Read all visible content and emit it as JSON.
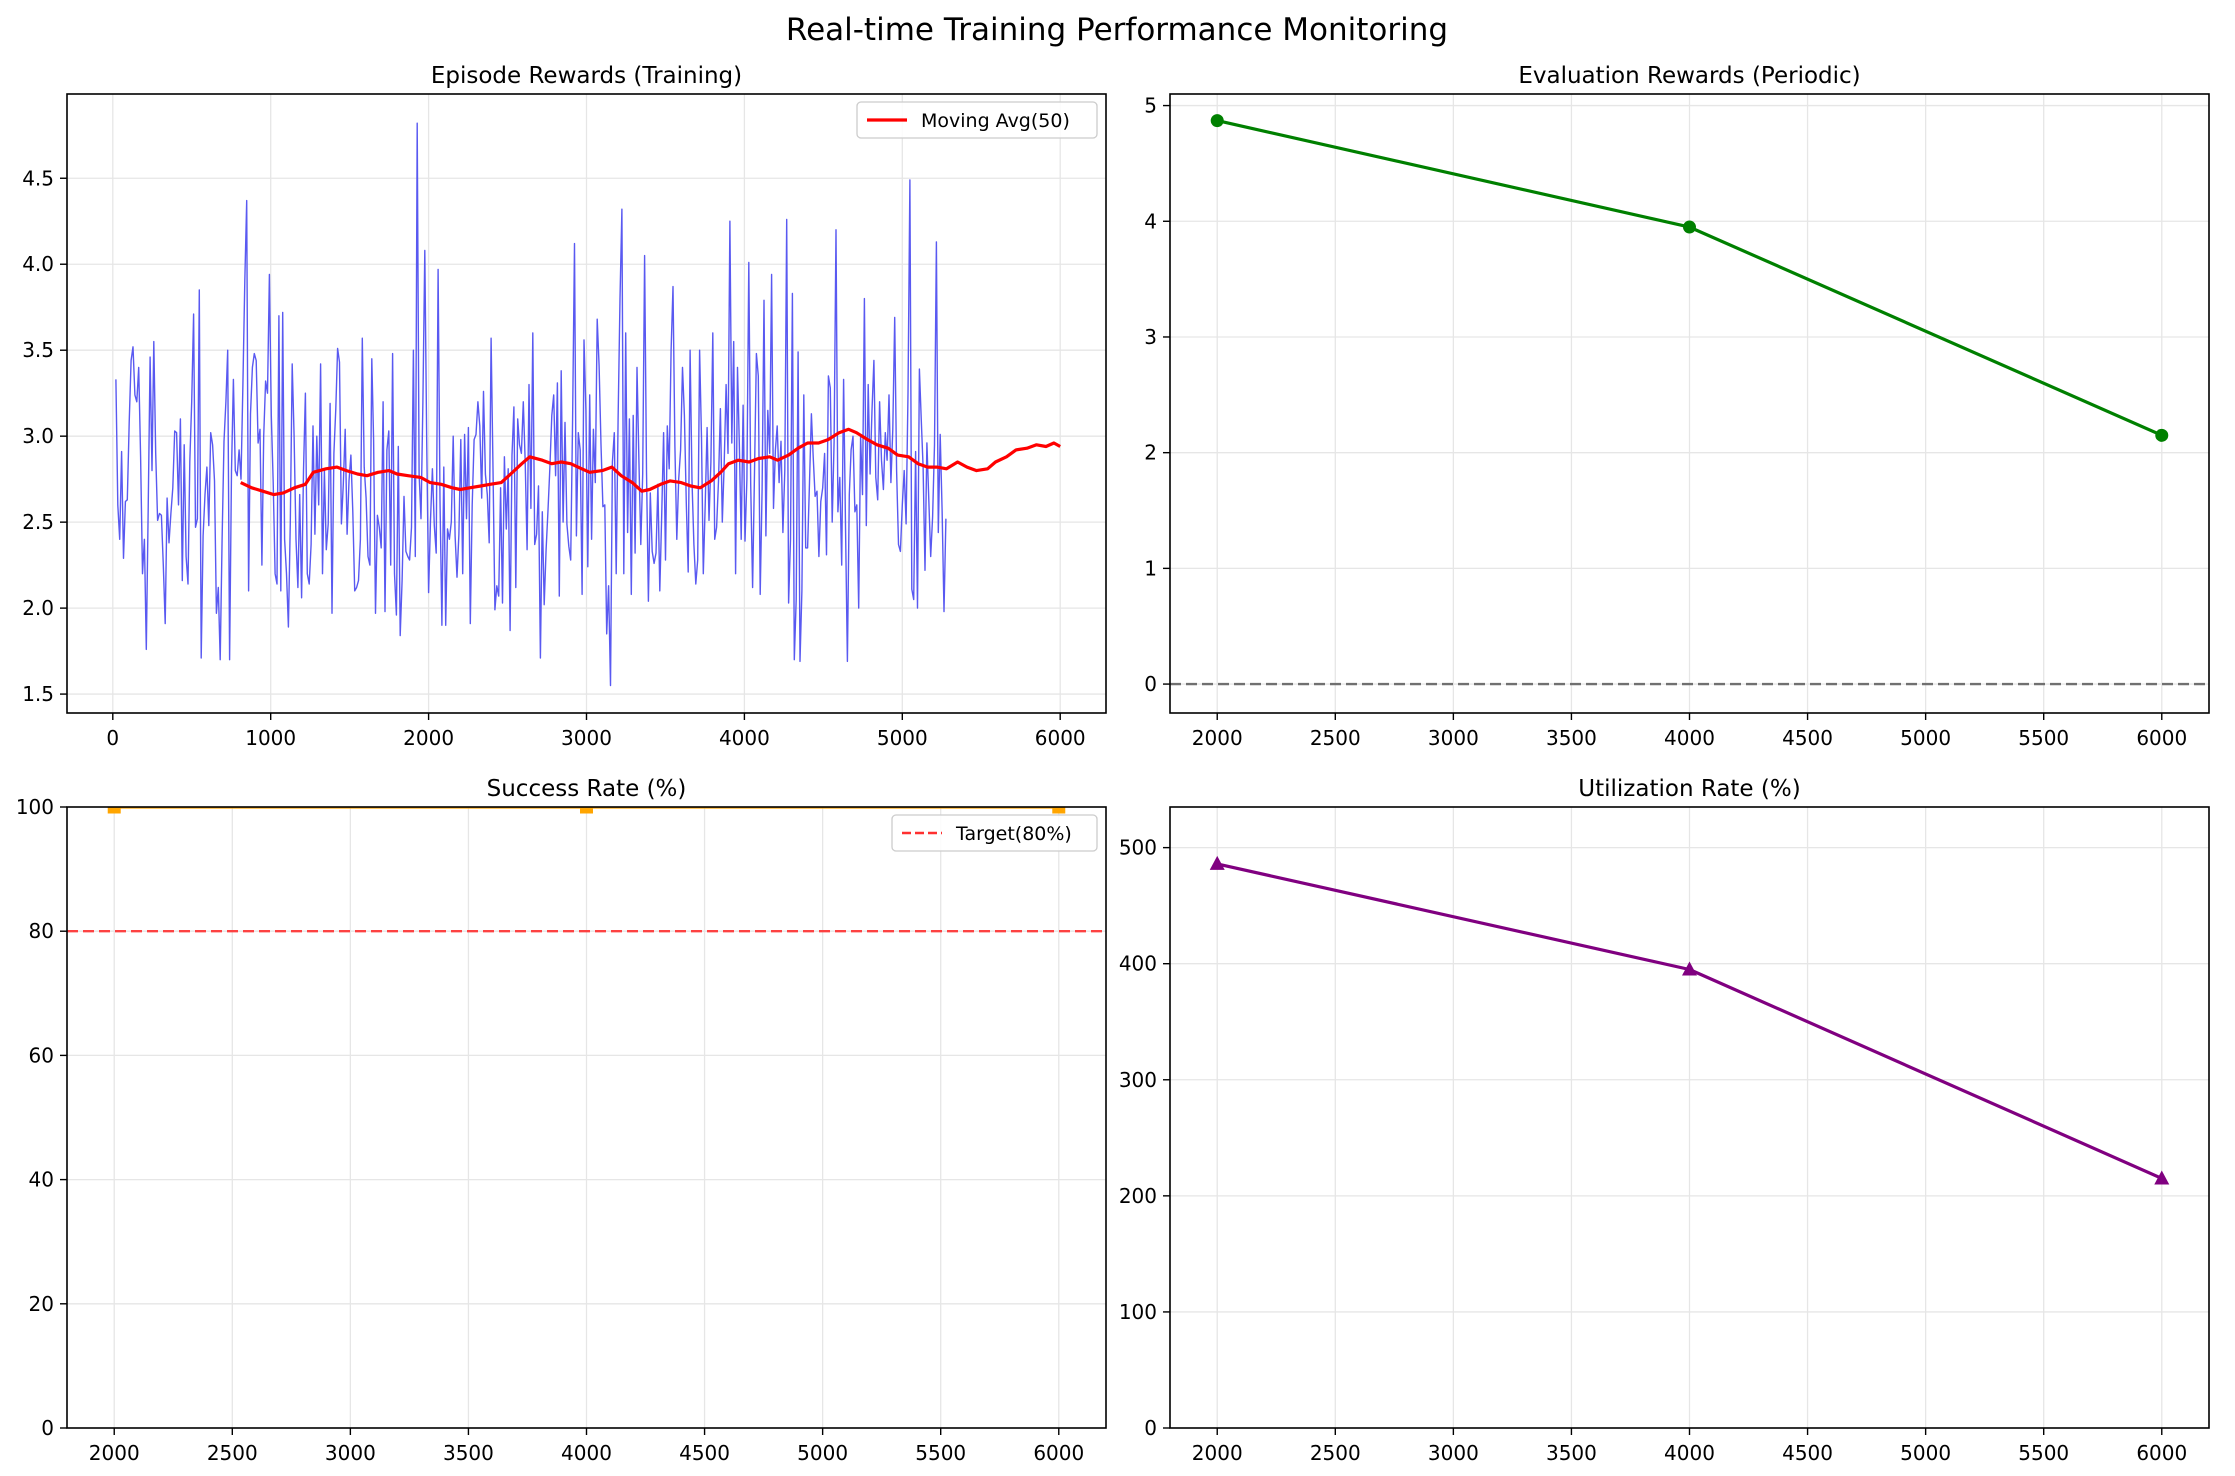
{
  "figure": {
    "title": "Real-time Training Performance Monitoring"
  },
  "colors": {
    "raw_rewards": "#5050f0",
    "moving_avg": "#ff0000",
    "eval": "#008000",
    "success": "#ffa500",
    "target": "#ff3030",
    "utilization": "#800080",
    "zero_line": "#707070",
    "grid": "#e6e6e6"
  },
  "chart_data": [
    {
      "type": "line",
      "title": "Episode Rewards (Training)",
      "xlabel": "",
      "ylabel": "",
      "xlim": [
        -290,
        6290
      ],
      "ylim": [
        1.39,
        4.99
      ],
      "xticks": [
        0,
        1000,
        2000,
        3000,
        4000,
        5000,
        6000
      ],
      "yticks": [
        1.5,
        2.0,
        2.5,
        3.0,
        3.5,
        4.0,
        4.5
      ],
      "ytick_labels": [
        "1.5",
        "2.0",
        "2.5",
        "3.0",
        "3.5",
        "4.0",
        "4.5"
      ],
      "grid": true,
      "legend": {
        "position": "upper-right",
        "entries": [
          "Moving Avg(50)"
        ]
      },
      "series": [
        {
          "key": "raw",
          "x_start": 20,
          "x_step": 12,
          "values": [
            3.33,
            2.6,
            2.4,
            2.91,
            2.29,
            2.62,
            2.63,
            3.08,
            3.44,
            3.52,
            3.24,
            3.2,
            3.4,
            2.88,
            2.2,
            2.4,
            1.76,
            2.58,
            3.46,
            2.8,
            3.55,
            2.9,
            2.51,
            2.55,
            2.54,
            2.25,
            1.91,
            2.64,
            2.38,
            2.55,
            2.7,
            3.03,
            3.02,
            2.6,
            3.1,
            2.16,
            2.95,
            2.3,
            2.14,
            2.85,
            3.2,
            3.71,
            2.47,
            2.52,
            3.85,
            1.71,
            2.42,
            2.66,
            2.82,
            2.48,
            3.02,
            2.95,
            2.74,
            1.97,
            2.12,
            1.7,
            2.4,
            2.97,
            3.2,
            3.5,
            1.7,
            2.8,
            3.33,
            2.8,
            2.77,
            2.92,
            2.75,
            3.3,
            3.9,
            4.37,
            2.1,
            3.13,
            3.4,
            3.48,
            3.44,
            2.96,
            3.04,
            2.25,
            3.0,
            3.32,
            3.25,
            3.94,
            3.12,
            2.73,
            2.2,
            2.14,
            3.7,
            2.1,
            3.72,
            2.4,
            2.2,
            1.89,
            2.5,
            3.42,
            3.0,
            2.4,
            2.12,
            2.66,
            2.06,
            2.8,
            3.25,
            2.2,
            2.14,
            2.37,
            3.06,
            2.43,
            3.0,
            2.6,
            3.42,
            2.2,
            2.8,
            2.34,
            2.49,
            3.19,
            1.97,
            2.9,
            3.16,
            3.51,
            3.43,
            2.49,
            2.72,
            3.04,
            2.43,
            2.74,
            2.89,
            2.56,
            2.1,
            2.12,
            2.16,
            2.4,
            3.57,
            2.82,
            2.64,
            2.3,
            2.25,
            3.45,
            2.98,
            1.97,
            2.54,
            2.47,
            2.35,
            3.2,
            1.98,
            2.92,
            3.03,
            2.25,
            3.48,
            2.2,
            1.96,
            2.94,
            1.84,
            2.16,
            2.65,
            2.33,
            2.3,
            2.28,
            2.47,
            3.5,
            2.3,
            4.82,
            2.78,
            2.52,
            3.2,
            4.08,
            2.97,
            2.09,
            2.51,
            2.81,
            2.48,
            2.32,
            3.97,
            2.63,
            1.9,
            2.82,
            1.9,
            2.46,
            2.4,
            2.5,
            3.0,
            2.42,
            2.18,
            2.43,
            2.98,
            2.2,
            3.01,
            2.52,
            3.05,
            1.91,
            2.6,
            2.98,
            3.01,
            3.2,
            3.06,
            2.64,
            3.26,
            2.78,
            2.66,
            2.38,
            3.57,
            2.81,
            1.99,
            2.13,
            2.07,
            2.7,
            2.03,
            2.88,
            2.46,
            2.81,
            1.87,
            2.89,
            3.17,
            2.12,
            3.1,
            2.95,
            2.9,
            3.2,
            2.85,
            2.34,
            3.3,
            2.58,
            3.6,
            2.37,
            2.43,
            2.71,
            1.71,
            2.56,
            2.02,
            2.34,
            2.57,
            2.82,
            3.12,
            3.24,
            2.77,
            3.31,
            2.07,
            3.38,
            2.5,
            3.08,
            2.49,
            2.36,
            2.28,
            3.1,
            4.12,
            2.42,
            3.02,
            2.92,
            2.08,
            3.56,
            3.15,
            2.24,
            3.24,
            2.4,
            3.04,
            2.73,
            3.68,
            3.41,
            2.95,
            2.59,
            2.6,
            1.85,
            2.13,
            1.55,
            2.85,
            3.02,
            2.2,
            3.1,
            3.8,
            4.32,
            2.2,
            3.6,
            2.44,
            3.1,
            2.08,
            3.12,
            2.32,
            3.4,
            2.86,
            2.37,
            2.78,
            4.05,
            2.8,
            2.04,
            2.67,
            2.33,
            2.26,
            2.32,
            2.72,
            2.1,
            2.54,
            3.02,
            2.28,
            3.06,
            2.81,
            3.5,
            3.87,
            2.94,
            2.4,
            2.75,
            2.92,
            3.4,
            3.12,
            2.61,
            2.21,
            3.5,
            2.74,
            2.37,
            2.14,
            2.28,
            3.5,
            2.99,
            2.2,
            2.6,
            3.05,
            2.51,
            2.85,
            3.6,
            2.4,
            2.47,
            2.74,
            3.16,
            2.5,
            2.84,
            3.3,
            2.9,
            4.25,
            2.96,
            3.55,
            2.2,
            3.4,
            2.96,
            2.4,
            3.18,
            2.39,
            2.75,
            4.01,
            2.72,
            2.12,
            2.79,
            3.48,
            3.35,
            2.08,
            2.69,
            3.79,
            2.42,
            3.15,
            2.9,
            3.94,
            2.58,
            2.92,
            3.06,
            2.73,
            2.97,
            2.44,
            2.8,
            4.26,
            2.03,
            2.4,
            3.83,
            1.7,
            2.05,
            3.49,
            1.69,
            2.1,
            3.24,
            2.35,
            2.35,
            2.73,
            3.13,
            2.88,
            2.65,
            2.68,
            2.3,
            2.62,
            2.7,
            2.9,
            2.31,
            3.35,
            3.28,
            2.5,
            2.97,
            4.2,
            2.56,
            2.76,
            2.25,
            3.33,
            2.48,
            1.69,
            2.66,
            2.92,
            3.0,
            2.56,
            2.6,
            2.0,
            3.0,
            2.66,
            3.8,
            2.48,
            3.3,
            2.78,
            3.15,
            3.44,
            2.76,
            2.63,
            3.2,
            2.86,
            2.69,
            3.02,
            2.86,
            3.24,
            2.73,
            3.04,
            3.69,
            2.8,
            2.37,
            2.33,
            2.6,
            2.8,
            2.49,
            3.25,
            4.49,
            2.11,
            2.05,
            2.91,
            2.0,
            3.39,
            3.09,
            2.82,
            2.22,
            2.96,
            2.63,
            2.3,
            2.53,
            2.95,
            4.13,
            2.44,
            3.01,
            2.57,
            1.98,
            2.52
          ]
        },
        {
          "key": "ma",
          "name": "Moving Avg(50)",
          "x": [
            810,
            880,
            950,
            1020,
            1080,
            1150,
            1220,
            1270,
            1350,
            1420,
            1480,
            1550,
            1610,
            1680,
            1750,
            1800,
            1870,
            1950,
            2010,
            2080,
            2150,
            2200,
            2260,
            2330,
            2390,
            2460,
            2520,
            2590,
            2640,
            2720,
            2780,
            2840,
            2900,
            2970,
            3020,
            3100,
            3160,
            3220,
            3290,
            3350,
            3400,
            3470,
            3530,
            3600,
            3660,
            3720,
            3790,
            3850,
            3900,
            3960,
            4030,
            4090,
            4160,
            4210,
            4280,
            4340,
            4400,
            4470,
            4530,
            4600,
            4660,
            4710,
            4780,
            4840,
            4910,
            4970,
            5040,
            5100,
            5160,
            5220,
            5280,
            5350,
            5410,
            5470,
            5540,
            5590,
            5660,
            5720,
            5790,
            5850,
            5910,
            5960,
            6000
          ],
          "values": [
            2.73,
            2.7,
            2.68,
            2.66,
            2.67,
            2.7,
            2.72,
            2.79,
            2.81,
            2.82,
            2.8,
            2.78,
            2.77,
            2.79,
            2.8,
            2.78,
            2.77,
            2.76,
            2.73,
            2.72,
            2.7,
            2.69,
            2.7,
            2.71,
            2.72,
            2.73,
            2.78,
            2.84,
            2.88,
            2.86,
            2.84,
            2.85,
            2.84,
            2.81,
            2.79,
            2.8,
            2.82,
            2.77,
            2.73,
            2.68,
            2.69,
            2.72,
            2.74,
            2.73,
            2.71,
            2.7,
            2.74,
            2.79,
            2.84,
            2.86,
            2.85,
            2.87,
            2.88,
            2.86,
            2.89,
            2.93,
            2.96,
            2.96,
            2.98,
            3.02,
            3.04,
            3.02,
            2.98,
            2.95,
            2.93,
            2.89,
            2.88,
            2.84,
            2.82,
            2.82,
            2.81,
            2.85,
            2.82,
            2.8,
            2.81,
            2.85,
            2.88,
            2.92,
            2.93,
            2.95,
            2.94,
            2.96,
            2.94
          ]
        }
      ]
    },
    {
      "type": "line",
      "title": "Evaluation Rewards (Periodic)",
      "xlabel": "",
      "ylabel": "",
      "xlim": [
        1800,
        6200
      ],
      "ylim": [
        -0.25,
        5.1
      ],
      "xticks": [
        2000,
        2500,
        3000,
        3500,
        4000,
        4500,
        5000,
        5500,
        6000
      ],
      "yticks": [
        0,
        1,
        2,
        3,
        4,
        5
      ],
      "ytick_labels": [
        "0",
        "1",
        "2",
        "3",
        "4",
        "5"
      ],
      "grid": true,
      "reference_line": {
        "y": 0,
        "style": "dashed"
      },
      "series": [
        {
          "key": "eval",
          "x": [
            2000,
            4000,
            6000
          ],
          "values": [
            4.87,
            3.95,
            2.15
          ],
          "marker": "circle"
        }
      ]
    },
    {
      "type": "line",
      "title": "Success Rate (%)",
      "xlabel": "",
      "ylabel": "",
      "xlim": [
        1800,
        6200
      ],
      "ylim": [
        0,
        100
      ],
      "xticks": [
        2000,
        2500,
        3000,
        3500,
        4000,
        4500,
        5000,
        5500,
        6000
      ],
      "yticks": [
        0,
        20,
        40,
        60,
        80,
        100
      ],
      "ytick_labels": [
        "0",
        "20",
        "40",
        "60",
        "80",
        "100"
      ],
      "grid": true,
      "legend": {
        "position": "upper-right",
        "entries": [
          "Target(80%)"
        ]
      },
      "reference_line": {
        "y": 80,
        "style": "dashed",
        "name": "Target(80%)"
      },
      "series": [
        {
          "key": "success",
          "x": [
            2000,
            4000,
            6000
          ],
          "values": [
            100,
            100,
            100
          ],
          "marker": "square"
        }
      ]
    },
    {
      "type": "line",
      "title": "Utilization Rate (%)",
      "xlabel": "",
      "ylabel": "",
      "xlim": [
        1800,
        6200
      ],
      "ylim": [
        0,
        535
      ],
      "xticks": [
        2000,
        2500,
        3000,
        3500,
        4000,
        4500,
        5000,
        5500,
        6000
      ],
      "yticks": [
        0,
        100,
        200,
        300,
        400,
        500
      ],
      "ytick_labels": [
        "0",
        "100",
        "200",
        "300",
        "400",
        "500"
      ],
      "grid": true,
      "series": [
        {
          "key": "util",
          "x": [
            2000,
            4000,
            6000
          ],
          "values": [
            486,
            395,
            215
          ],
          "marker": "triangle"
        }
      ]
    }
  ]
}
